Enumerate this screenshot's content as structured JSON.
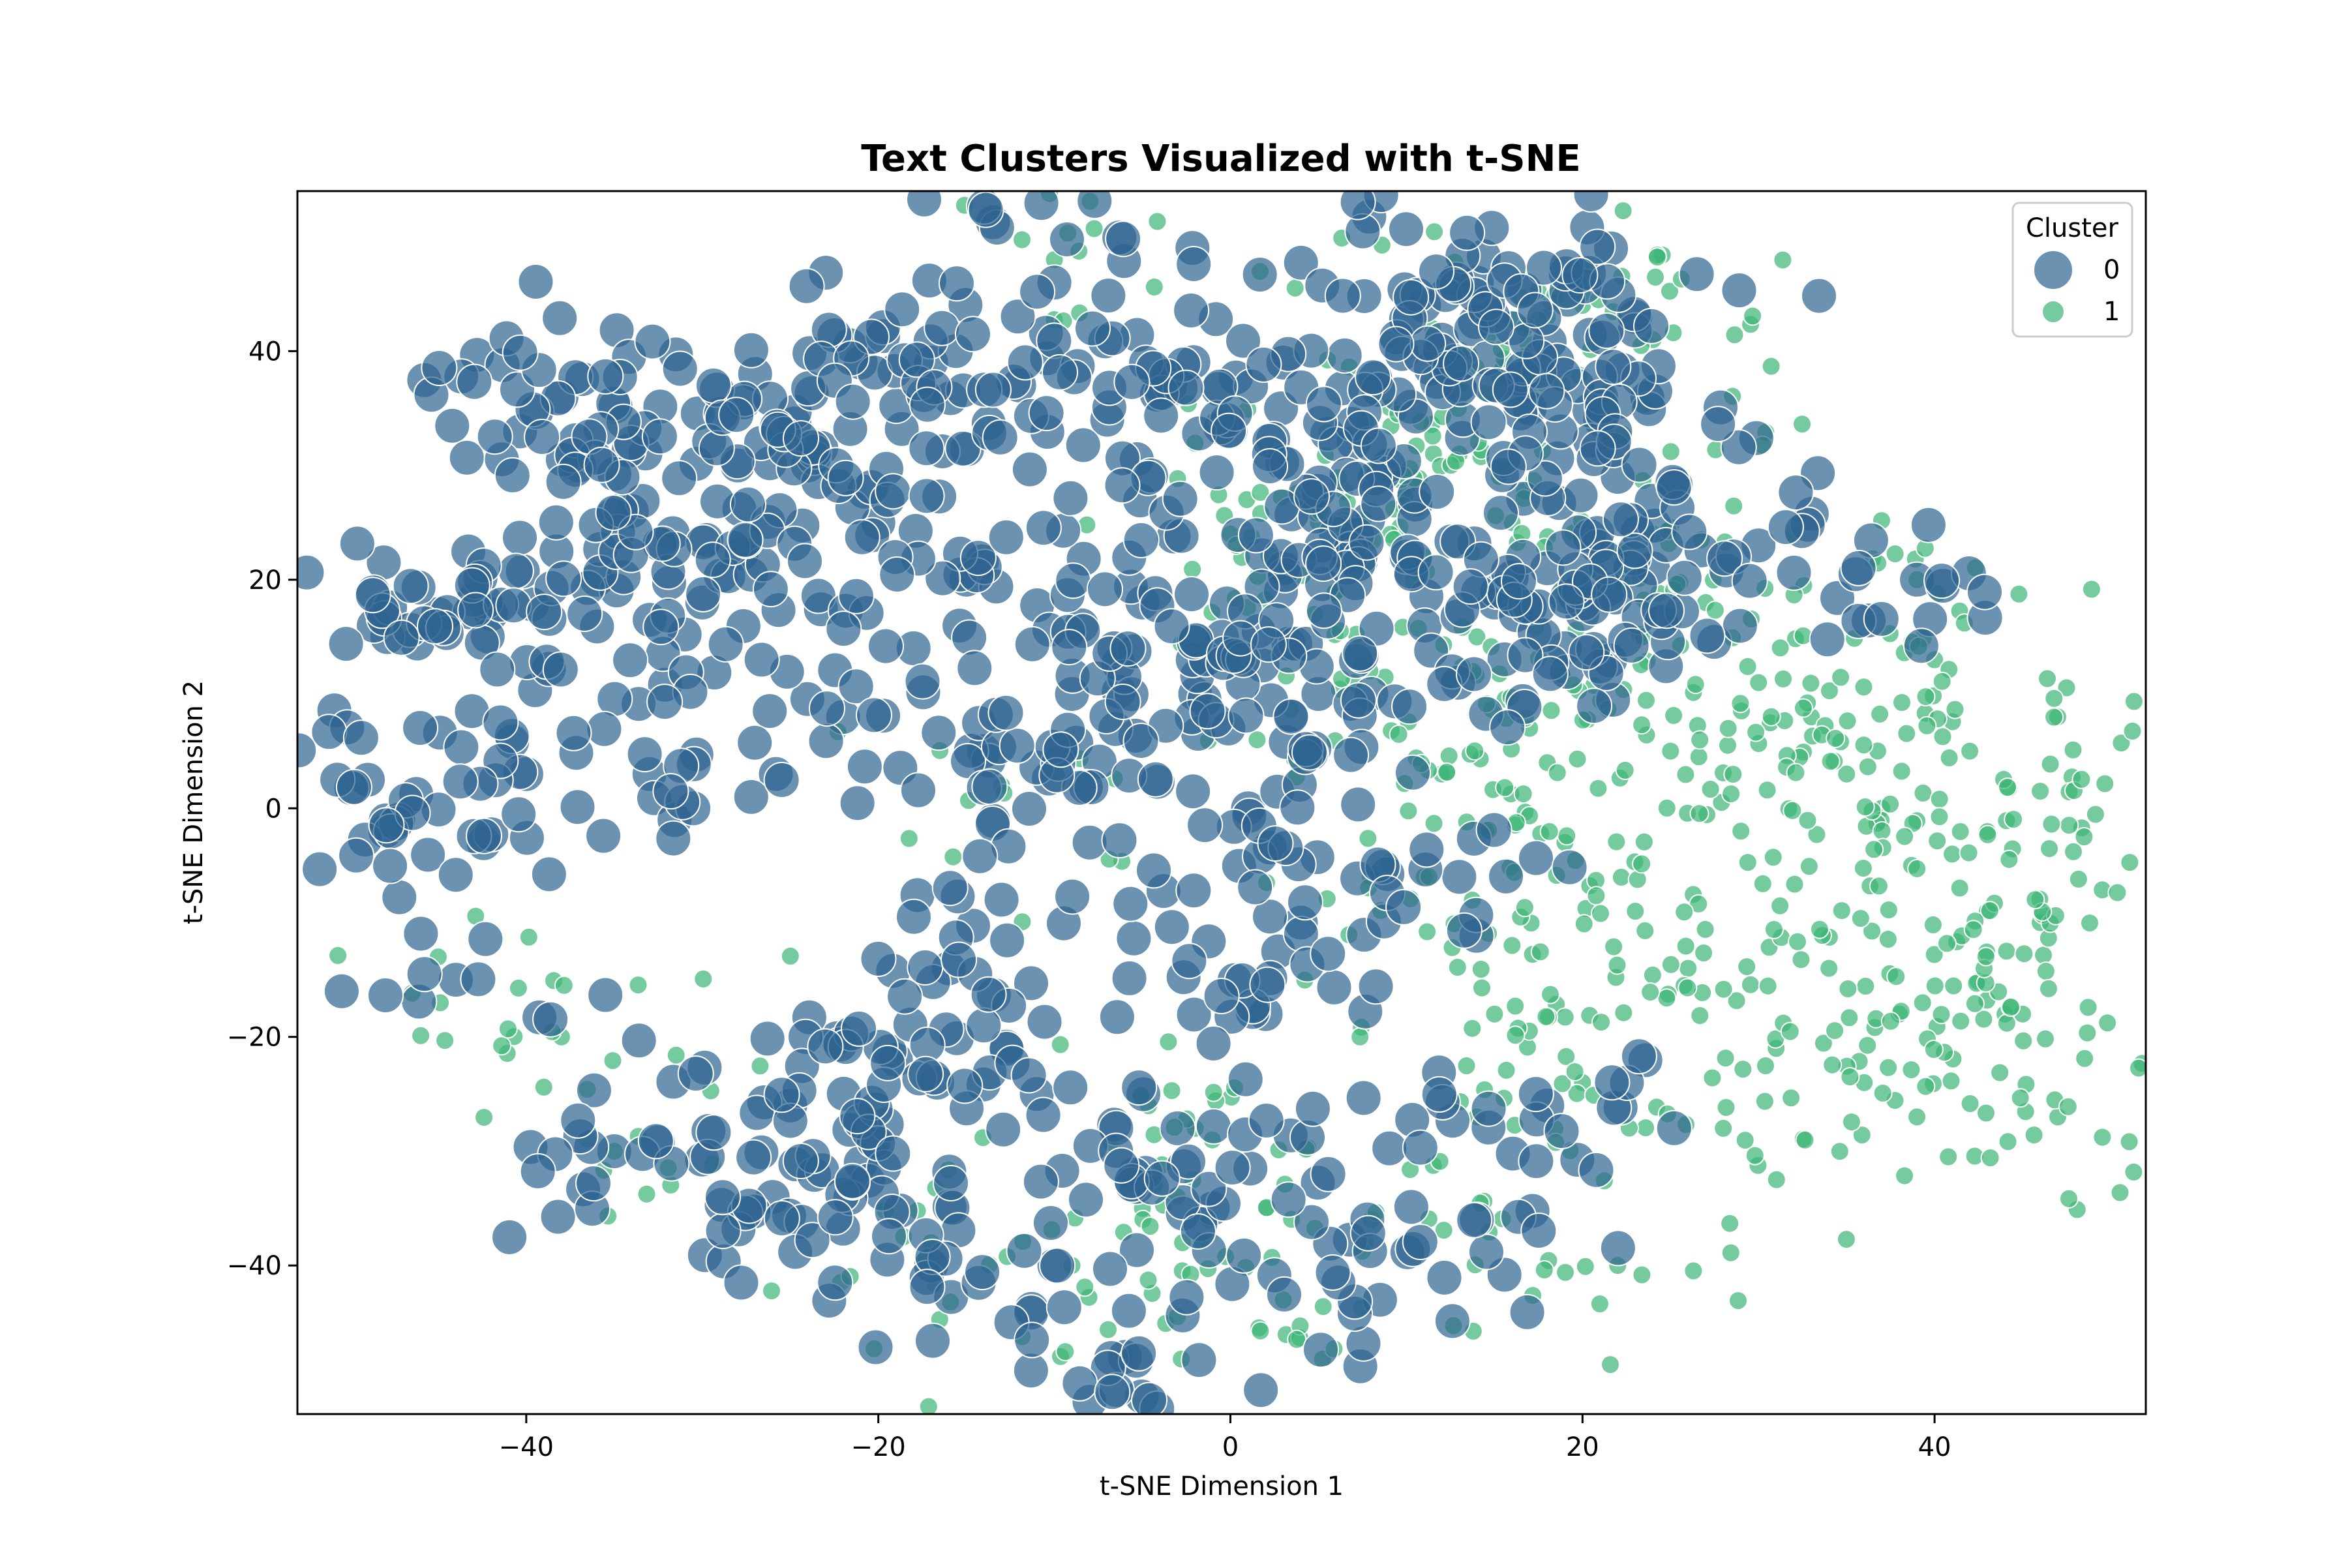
{
  "chart_data": {
    "type": "scatter",
    "title": "Text Clusters Visualized with t-SNE",
    "xlabel": "t-SNE Dimension 1",
    "ylabel": "t-SNE Dimension 2",
    "xlim": [
      -53,
      52
    ],
    "ylim": [
      -53,
      54
    ],
    "x_ticks": [
      -40,
      -20,
      0,
      20,
      40
    ],
    "y_ticks": [
      -40,
      -20,
      0,
      20,
      40
    ],
    "tick_labels_x": [
      "−40",
      "−20",
      "0",
      "20",
      "40"
    ],
    "tick_labels_y": [
      "−40",
      "−20",
      "0",
      "20",
      "40"
    ],
    "grid": false,
    "legend": {
      "title": "Cluster",
      "placement": "top-right",
      "entries": [
        {
          "label": "0",
          "color": "#2e6490",
          "size": "large"
        },
        {
          "label": "1",
          "color": "#3bb575",
          "size": "small"
        }
      ]
    },
    "marker_alpha": 0.7,
    "series": [
      {
        "name": "0",
        "color": "#2e6490",
        "marker_size": "large",
        "approx_count": 1300,
        "sample_points": [
          [
            -49,
            2.5
          ],
          [
            -48,
            -2
          ],
          [
            -45,
            17
          ],
          [
            -44,
            -15
          ],
          [
            -42,
            17
          ],
          [
            -40,
            3
          ],
          [
            -38,
            36
          ],
          [
            -37,
            30
          ],
          [
            -36,
            20
          ],
          [
            -35,
            -30
          ],
          [
            -34,
            26
          ],
          [
            -33,
            3
          ],
          [
            -30,
            18
          ],
          [
            -28,
            30
          ],
          [
            -27,
            38
          ],
          [
            -26,
            -34
          ],
          [
            -25,
            -26
          ],
          [
            -24,
            30
          ],
          [
            -22,
            8
          ],
          [
            -21,
            39
          ],
          [
            -21,
            -31
          ],
          [
            -20,
            25
          ],
          [
            -19,
            -22
          ],
          [
            -18,
            14
          ],
          [
            -17,
            39
          ],
          [
            -17,
            -40
          ],
          [
            -16,
            -14
          ],
          [
            -15,
            20
          ],
          [
            -14,
            5
          ],
          [
            -13,
            -8
          ],
          [
            -12,
            37
          ],
          [
            -11,
            -25
          ],
          [
            -10,
            46
          ],
          [
            -10,
            -40
          ],
          [
            -9,
            10
          ],
          [
            -8,
            -3
          ],
          [
            -7,
            34
          ],
          [
            -6,
            -48
          ],
          [
            -5,
            18
          ],
          [
            -4,
            37
          ],
          [
            -3,
            -28
          ],
          [
            -2,
            10
          ],
          [
            -1,
            -35
          ],
          [
            0,
            33
          ],
          [
            1,
            0
          ],
          [
            2,
            -18
          ],
          [
            3,
            39
          ],
          [
            3,
            21
          ],
          [
            4,
            -10
          ],
          [
            5,
            10
          ],
          [
            6,
            24
          ],
          [
            7,
            32
          ],
          [
            8,
            10
          ],
          [
            9,
            30
          ],
          [
            8.5,
            -43
          ],
          [
            11,
            44
          ],
          [
            12,
            41
          ],
          [
            13,
            37
          ],
          [
            13,
            -6
          ],
          [
            14,
            46
          ],
          [
            15,
            18
          ],
          [
            16,
            42
          ],
          [
            17,
            35
          ],
          [
            18,
            21
          ],
          [
            19,
            14
          ],
          [
            20,
            17
          ],
          [
            21,
            34
          ],
          [
            22,
            29
          ],
          [
            23,
            43
          ],
          [
            24,
            21
          ],
          [
            18,
            -26
          ],
          [
            14,
            -36
          ],
          [
            30,
            23
          ],
          [
            39,
            20
          ]
        ]
      },
      {
        "name": "1",
        "color": "#3bb575",
        "marker_size": "small",
        "approx_count": 900,
        "sample_points": [
          [
            -45,
            -13
          ],
          [
            -38,
            -20
          ],
          [
            -35,
            -30
          ],
          [
            -17,
            -38
          ],
          [
            -13,
            2
          ],
          [
            -10,
            48
          ],
          [
            -9,
            -40
          ],
          [
            -6,
            -48
          ],
          [
            -5,
            -35
          ],
          [
            -2,
            -28
          ],
          [
            0,
            24
          ],
          [
            2,
            -35
          ],
          [
            3,
            -43
          ],
          [
            5,
            25
          ],
          [
            6,
            19
          ],
          [
            7,
            11
          ],
          [
            8,
            -36
          ],
          [
            9,
            41
          ],
          [
            10,
            28
          ],
          [
            11,
            22
          ],
          [
            11,
            -6
          ],
          [
            12,
            3
          ],
          [
            13,
            31
          ],
          [
            13,
            37
          ],
          [
            14,
            15
          ],
          [
            14,
            -27
          ],
          [
            15,
            -18
          ],
          [
            16,
            -12
          ],
          [
            16,
            25
          ],
          [
            17,
            7
          ],
          [
            18,
            43
          ],
          [
            18,
            4
          ],
          [
            19,
            -3
          ],
          [
            20,
            -24
          ],
          [
            20,
            44
          ],
          [
            21,
            14
          ],
          [
            22,
            -40
          ],
          [
            23,
            -9
          ],
          [
            24,
            41
          ],
          [
            24,
            24
          ],
          [
            25,
            5
          ],
          [
            26,
            -14
          ],
          [
            27,
            18
          ],
          [
            28,
            -28
          ],
          [
            29,
            -2
          ],
          [
            30,
            11
          ],
          [
            31,
            -21
          ],
          [
            32,
            24
          ],
          [
            33,
            8
          ],
          [
            34,
            -14
          ],
          [
            35,
            3
          ],
          [
            36,
            -24
          ],
          [
            37,
            0
          ],
          [
            38,
            -18
          ],
          [
            39,
            20
          ],
          [
            39,
            -27
          ],
          [
            40,
            13
          ],
          [
            41,
            -4
          ],
          [
            42,
            5
          ],
          [
            43,
            -9
          ],
          [
            44,
            -18
          ],
          [
            45,
            -18
          ],
          [
            46,
            1.5
          ],
          [
            47,
            8
          ],
          [
            47,
            -27
          ],
          [
            46,
            -10
          ]
        ]
      }
    ]
  }
}
